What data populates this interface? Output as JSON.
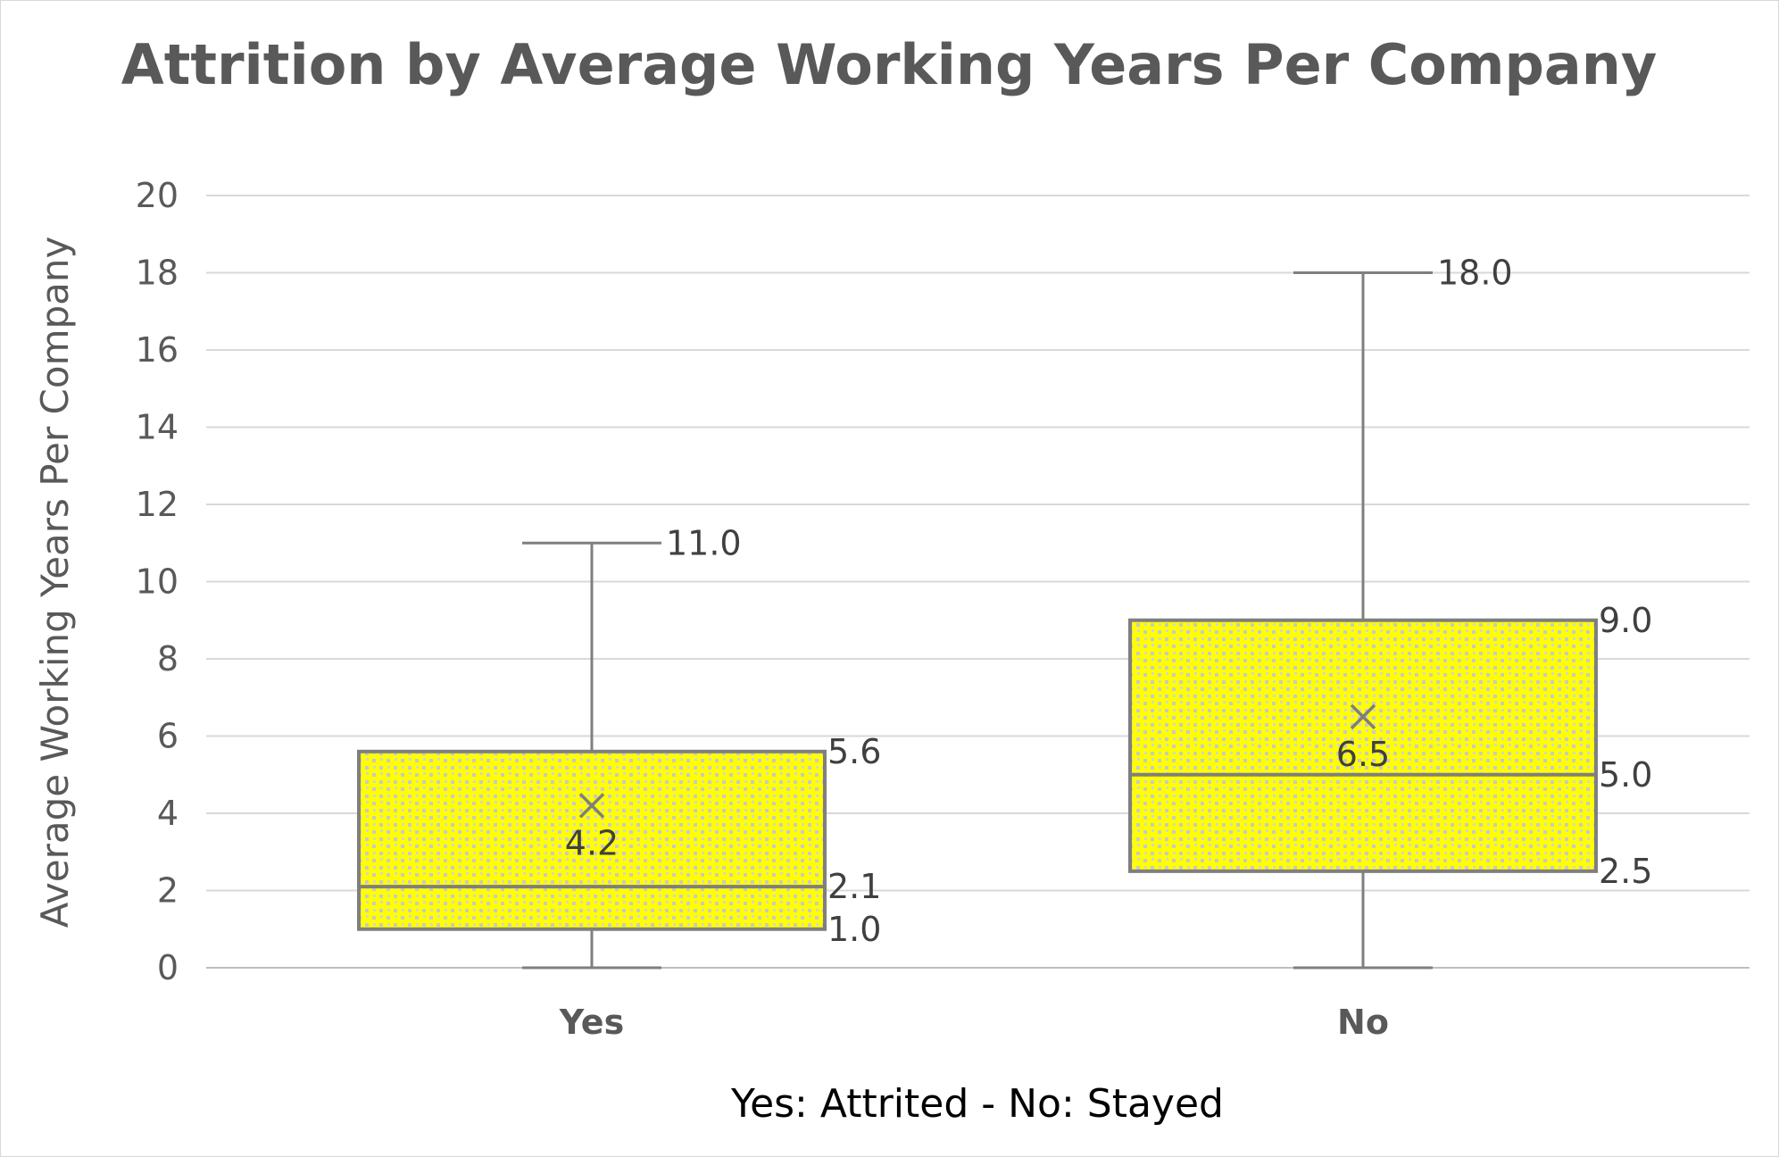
{
  "chart_data": {
    "type": "box",
    "title": "Attrition by Average Working Years Per Company",
    "xlabel": "Yes: Attrited - No: Stayed",
    "ylabel": "Average Working Years Per Company",
    "ylim": [
      0,
      20
    ],
    "yticks": [
      0,
      2,
      4,
      6,
      8,
      10,
      12,
      14,
      16,
      18,
      20
    ],
    "grid": true,
    "categories": [
      "Yes",
      "No"
    ],
    "boxes": [
      {
        "category": "Yes",
        "min": 0,
        "q1": 1.0,
        "median": 2.1,
        "q3": 5.6,
        "max": 11.0,
        "mean": 4.2,
        "labels": {
          "max": "11.0",
          "q3": "5.6",
          "median": "2.1",
          "q1": "1.0",
          "mean": "4.2"
        }
      },
      {
        "category": "No",
        "min": 0,
        "q1": 2.5,
        "median": 5.0,
        "q3": 9.0,
        "max": 18.0,
        "mean": 6.5,
        "labels": {
          "max": "18.0",
          "q3": "9.0",
          "median": "5.0",
          "q1": "2.5",
          "mean": "6.5"
        }
      }
    ],
    "colors": {
      "box_fill": "#ffff00",
      "box_pattern": "#c8c8c8",
      "stroke": "#7f7f7f",
      "grid": "#d9d9d9",
      "text": "#595959"
    }
  }
}
